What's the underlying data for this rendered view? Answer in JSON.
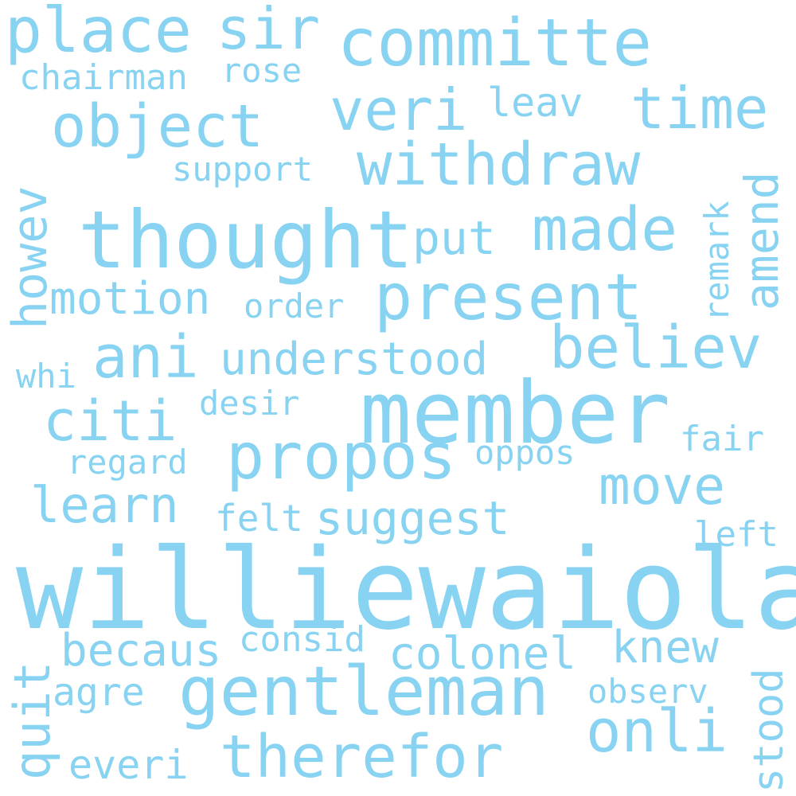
{
  "colors": {
    "background": "#ffffff",
    "word": "#87d3f1"
  },
  "words": {
    "williewaiola": "williewaiola",
    "member": "member",
    "thought": "thought",
    "gentleman": "gentleman",
    "committe": "committe",
    "propos": "propos",
    "present": "present",
    "therefor": "therefor",
    "believ": "believ",
    "withdraw": "withdraw",
    "object": "object",
    "ani": "ani",
    "made": "made",
    "time": "time",
    "place": "place",
    "onli": "onli",
    "understood": "understood",
    "move": "move",
    "sir": "sir",
    "citi": "citi",
    "veri": "veri",
    "suggest": "suggest",
    "colonel": "colonel",
    "motion": "motion",
    "learn": "learn",
    "knew": "knew",
    "put": "put",
    "becaus": "becaus",
    "howev": "howev",
    "amend": "amend",
    "agre": "agre",
    "everi": "everi",
    "quit": "quit",
    "stood": "stood",
    "chairman": "chairman",
    "regard": "regard",
    "consid": "consid",
    "observ": "observ",
    "leav": "leav",
    "support": "support",
    "desir": "desir",
    "oppos": "oppos",
    "fair": "fair",
    "felt": "felt",
    "left": "left",
    "rose": "rose",
    "order": "order",
    "whi": "whi",
    "remark": "remark"
  }
}
